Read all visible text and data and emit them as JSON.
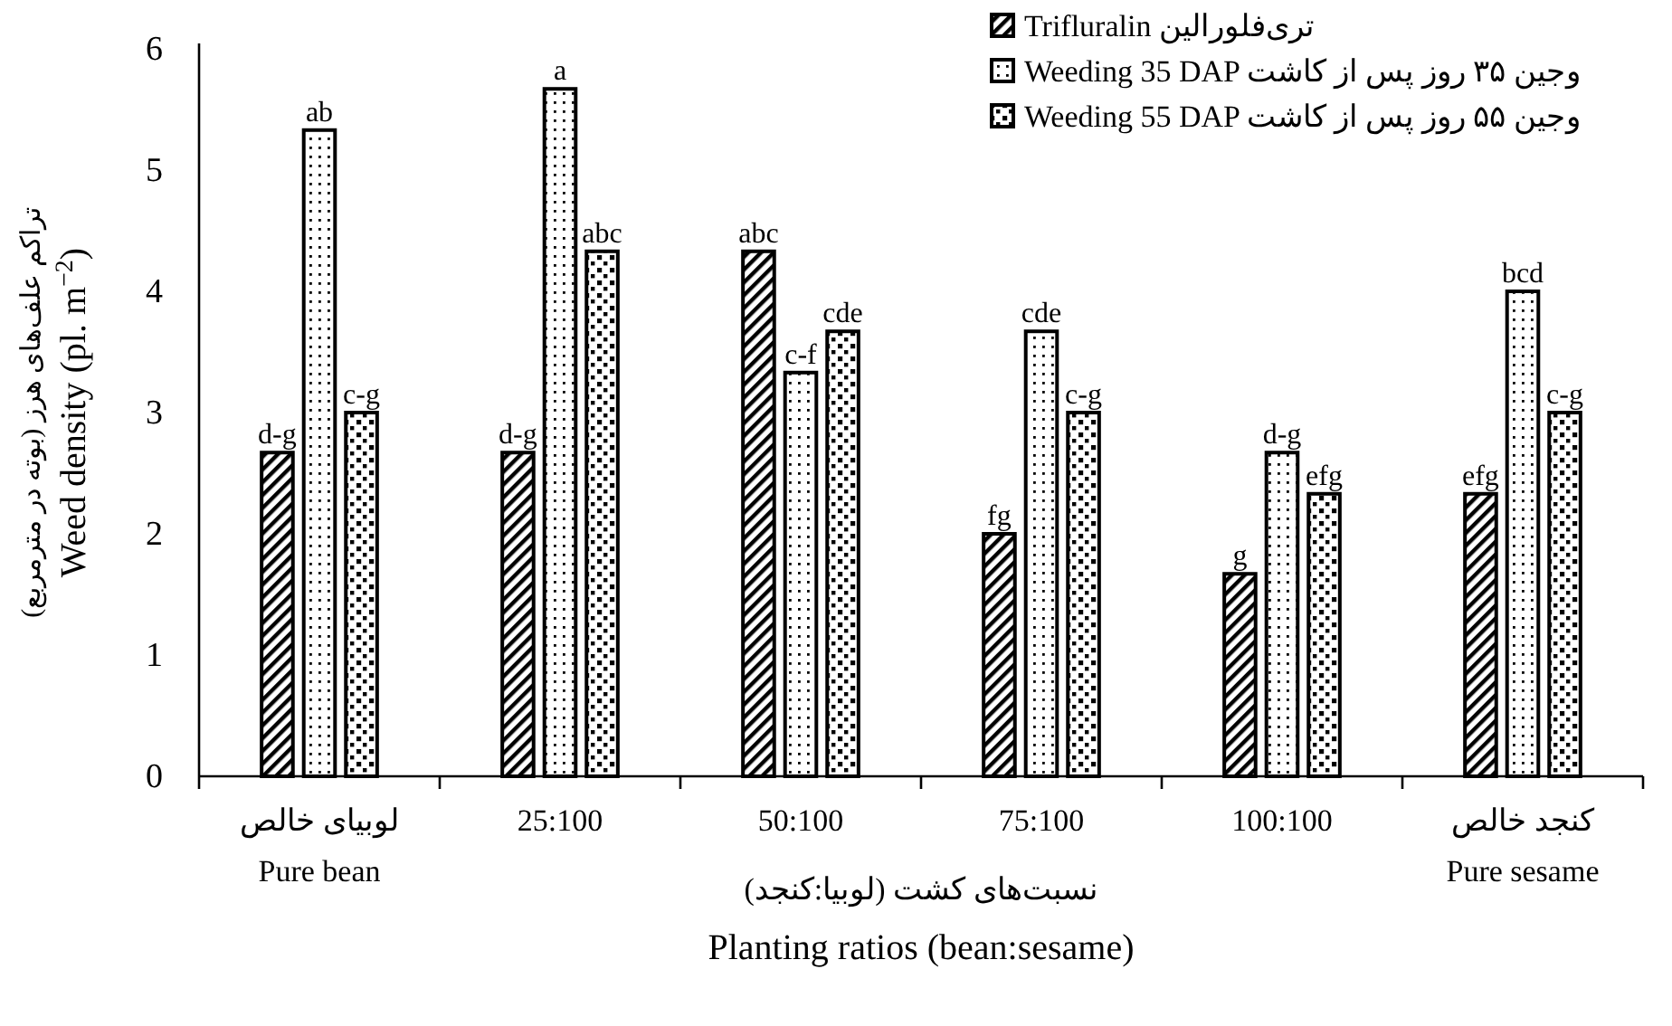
{
  "chart_data": {
    "type": "bar",
    "categories": [
      "لوبیای خالص\nPure bean",
      "25:100",
      "50:100",
      "75:100",
      "100:100",
      "کنجد خالص\nPure sesame"
    ],
    "series": [
      {
        "name": "Trifluralin تری‌فلورالین",
        "color": "#000000",
        "values": [
          2.67,
          2.67,
          4.33,
          2.0,
          1.67,
          2.33
        ],
        "value_labels": [
          "d-g",
          "d-g",
          "abc",
          "fg",
          "g",
          "efg"
        ]
      },
      {
        "name": "Weeding 35 DAP وجین ۳۵ روز پس از کاشت",
        "color": "#000000",
        "values": [
          5.33,
          5.67,
          3.33,
          3.67,
          2.67,
          4.0
        ],
        "value_labels": [
          "ab",
          "a",
          "c-f",
          "cde",
          "d-g",
          "bcd"
        ]
      },
      {
        "name": "Weeding 55 DAP وجین ۵۵ روز پس از کاشت",
        "color": "#000000",
        "values": [
          3.0,
          4.33,
          3.67,
          3.0,
          2.33,
          3.0
        ],
        "value_labels": [
          "c-g",
          "abc",
          "cde",
          "c-g",
          "efg",
          "c-g"
        ]
      }
    ],
    "xlabel": "نسبت‌های کشت (لوبیا:کنجد)\nPlanting ratios (bean:sesame)",
    "ylabel": "تراکم علف‌های هرز (بوته در مترمربع)\nWeed density (pl. m$^{−2}$)",
    "ylim": [
      0,
      6
    ],
    "yticks": [
      0,
      1,
      2,
      3,
      4,
      5,
      6
    ],
    "grid": false,
    "legend": "top right"
  }
}
